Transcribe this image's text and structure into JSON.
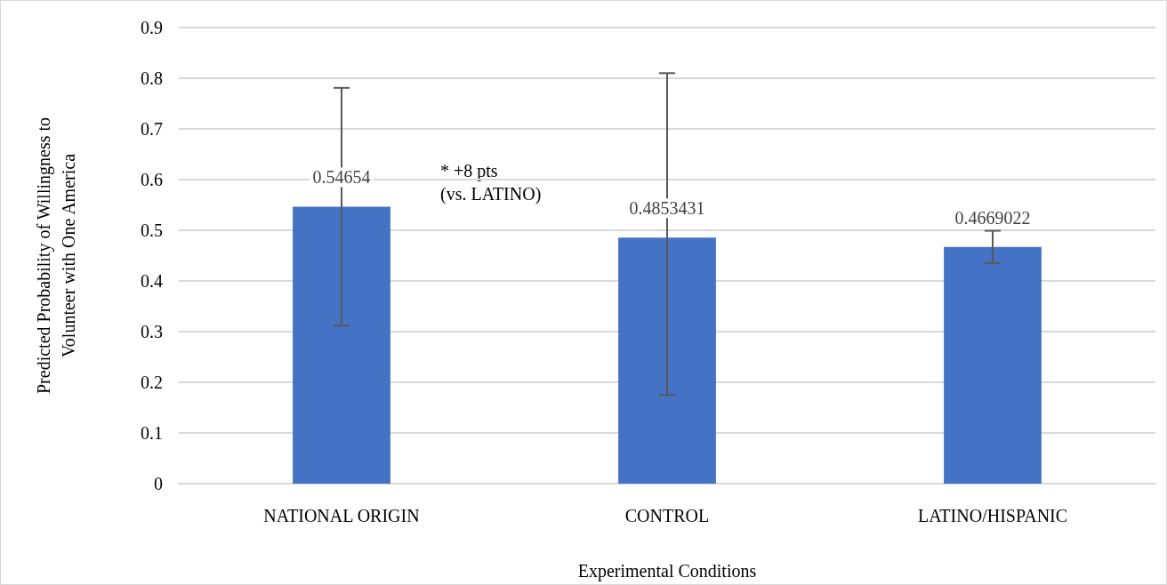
{
  "chart_data": {
    "type": "bar",
    "categories": [
      "NATIONAL ORIGIN",
      "CONTROL",
      "LATINO/HISPANIC"
    ],
    "values": [
      0.54654,
      0.4853431,
      0.4669022
    ],
    "color": "#4472c4",
    "errors": [
      [
        0.312,
        0.781
      ],
      [
        0.175,
        0.81
      ],
      [
        0.435,
        0.499
      ]
    ],
    "data_labels": true,
    "xlabel": "Experimental Conditions",
    "ylabel": "Predicted Probability of Willingness to\nVolunteer with One America",
    "ylim": [
      0,
      0.9
    ],
    "yticks": [
      0,
      0.1,
      0.2,
      0.3,
      0.4,
      0.5,
      0.6,
      0.7,
      0.8,
      0.9
    ],
    "grid": "y",
    "annotations": [
      "* +8 pts\n(vs. LATINO)"
    ]
  }
}
